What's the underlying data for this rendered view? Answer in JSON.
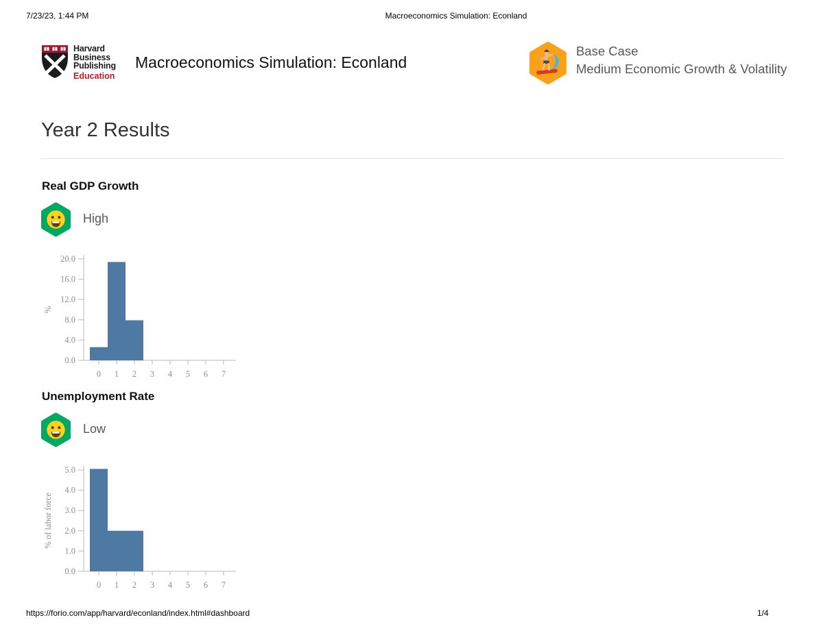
{
  "colors": {
    "bar": "#4e79a2",
    "axis": "#b9b9b9",
    "tick_text": "#8f8f8f",
    "accent_green": "#00a862",
    "accent_yellow": "#ffd21e",
    "accent_orange": "#f9a11b",
    "crimson": "#9e1b32",
    "muted_text": "#55585a"
  },
  "print_header": {
    "datetime": "7/23/23, 1:44 PM",
    "title": "Macroeconomics Simulation: Econland"
  },
  "print_footer": {
    "url": "https://forio.com/app/harvard/econland/index.html#dashboard",
    "page_number": "1/4"
  },
  "header": {
    "logo": {
      "line1": "Harvard",
      "line2": "Business",
      "line3": "Publishing",
      "line4": "Education"
    },
    "app_title": "Macroeconomics Simulation: Econland",
    "scenario": {
      "name": "Base Case",
      "description": "Medium Economic Growth & Volatility"
    }
  },
  "main": {
    "page_title": "Year 2 Results",
    "sections": [
      {
        "heading": "Real GDP Growth",
        "rating": "High"
      },
      {
        "heading": "Unemployment Rate",
        "rating": "Low"
      }
    ]
  },
  "chart_data": [
    {
      "type": "bar",
      "title": "Real GDP Growth",
      "xlabel": "",
      "ylabel": "%",
      "categories": [
        "0",
        "1",
        "2",
        "3",
        "4",
        "5",
        "6",
        "7"
      ],
      "values": [
        2.6,
        19.4,
        7.9,
        0,
        0,
        0,
        0,
        0
      ],
      "ylim": [
        0,
        20
      ],
      "yticks": [
        "0.0",
        "4.0",
        "8.0",
        "12.0",
        "16.0",
        "20.0"
      ],
      "grid": false,
      "legend": "none"
    },
    {
      "type": "bar",
      "title": "Unemployment Rate",
      "xlabel": "",
      "ylabel": "% of labor force",
      "categories": [
        "0",
        "1",
        "2",
        "3",
        "4",
        "5",
        "6",
        "7"
      ],
      "values": [
        5.05,
        2.0,
        2.0,
        0,
        0,
        0,
        0,
        0
      ],
      "ylim": [
        0,
        5
      ],
      "yticks": [
        "0.0",
        "1.0",
        "2.0",
        "3.0",
        "4.0",
        "5.0"
      ],
      "grid": false,
      "legend": "none"
    }
  ]
}
